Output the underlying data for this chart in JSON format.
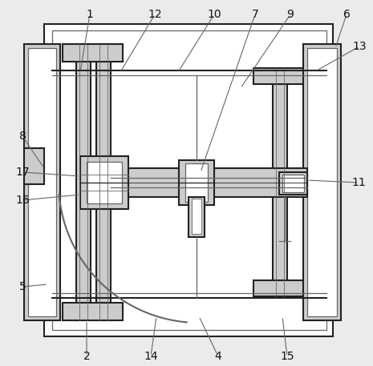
{
  "bg_color": "#ebebeb",
  "line_color": "#666666",
  "dark_line": "#222222",
  "white": "#ffffff",
  "gray1": "#cccccc",
  "gray2": "#aaaaaa"
}
